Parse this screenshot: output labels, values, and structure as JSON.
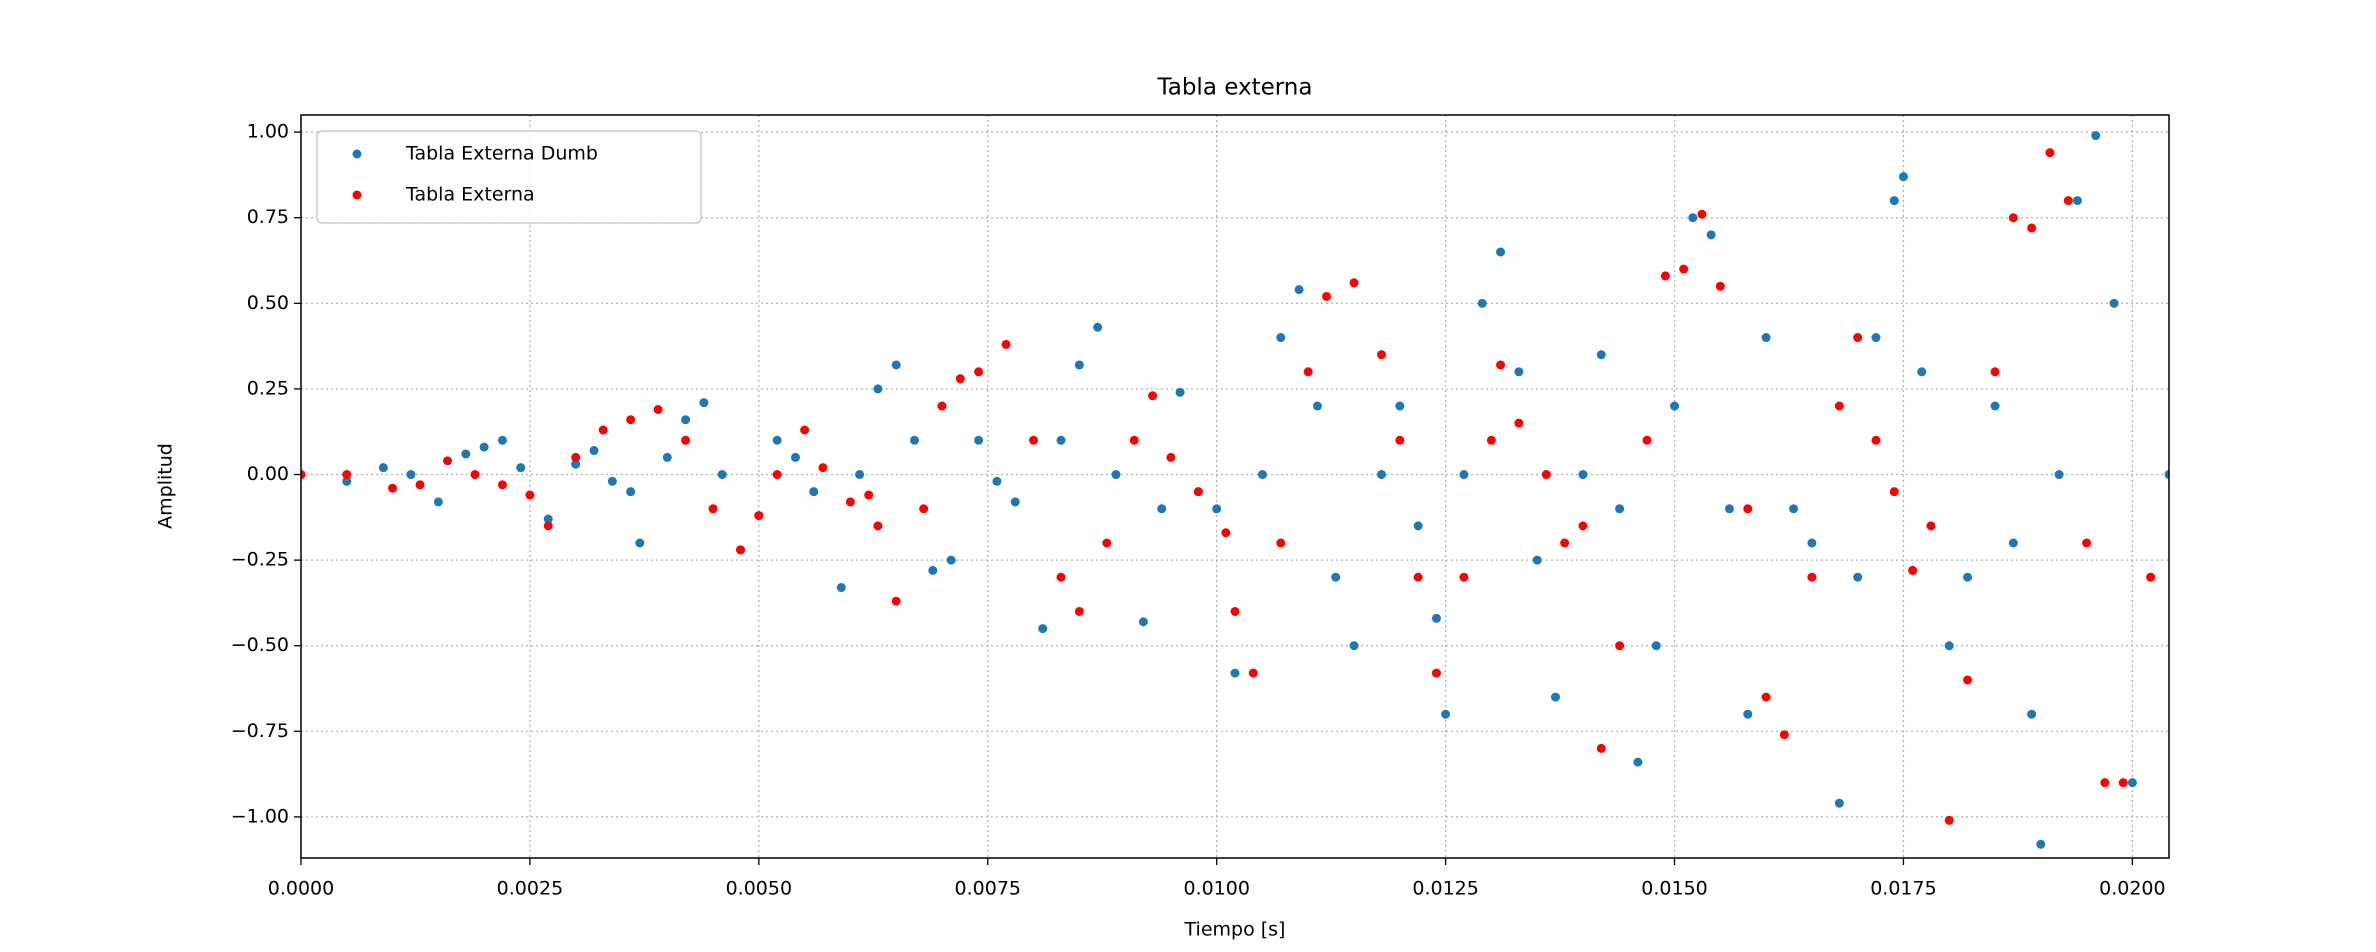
{
  "chart_data": {
    "type": "scatter",
    "title": "Tabla externa",
    "x_label": "Tiempo [s]",
    "y_label": "Amplitud",
    "xlim": [
      0,
      0.0204
    ],
    "ylim": [
      -1.12,
      1.05
    ],
    "xticks": [
      {
        "value": 0,
        "label": "0.0000"
      },
      {
        "value": 0.0025,
        "label": "0.0025"
      },
      {
        "value": 0.005,
        "label": "0.0050"
      },
      {
        "value": 0.0075,
        "label": "0.0075"
      },
      {
        "value": 0.01,
        "label": "0.0100"
      },
      {
        "value": 0.0125,
        "label": "0.0125"
      },
      {
        "value": 0.015,
        "label": "0.0150"
      },
      {
        "value": 0.0175,
        "label": "0.0175"
      },
      {
        "value": 0.02,
        "label": "0.0200"
      }
    ],
    "yticks": [
      {
        "value": -1,
        "label": "−1.00"
      },
      {
        "value": -0.75,
        "label": "−0.75"
      },
      {
        "value": -0.5,
        "label": "−0.50"
      },
      {
        "value": -0.25,
        "label": "−0.25"
      },
      {
        "value": 0,
        "label": "0.00"
      },
      {
        "value": 0.25,
        "label": "0.25"
      },
      {
        "value": 0.5,
        "label": "0.50"
      },
      {
        "value": 0.75,
        "label": "0.75"
      },
      {
        "value": 1,
        "label": "1.00"
      }
    ],
    "grid": true,
    "legend": "upper left",
    "series": [
      {
        "name": "Tabla Externa Dumb",
        "color": "#1f77b4",
        "x": [
          0,
          0.0005,
          0.0009,
          0.0012,
          0.0015,
          0.0018,
          0.002,
          0.0022,
          0.0024,
          0.0027,
          0.003,
          0.0032,
          0.0034,
          0.0036,
          0.0037,
          0.004,
          0.0042,
          0.0044,
          0.0046,
          0.0048,
          0.005,
          0.0052,
          0.0054,
          0.0056,
          0.0059,
          0.0061,
          0.0063,
          0.0065,
          0.0067,
          0.0069,
          0.0071,
          0.0074,
          0.0076,
          0.0078,
          0.0081,
          0.0083,
          0.0085,
          0.0087,
          0.0089,
          0.0092,
          0.0094,
          0.0096,
          0.0098,
          0.01,
          0.0102,
          0.0105,
          0.0107,
          0.0109,
          0.0111,
          0.0113,
          0.0115,
          0.0118,
          0.012,
          0.0122,
          0.0124,
          0.0125,
          0.0127,
          0.0129,
          0.0131,
          0.0133,
          0.0135,
          0.0137,
          0.014,
          0.0142,
          0.0144,
          0.0146,
          0.0148,
          0.015,
          0.0152,
          0.0154,
          0.0156,
          0.0158,
          0.016,
          0.0163,
          0.0165,
          0.0168,
          0.017,
          0.0172,
          0.0174,
          0.0175,
          0.0177,
          0.018,
          0.0182,
          0.0185,
          0.0187,
          0.0189,
          0.019,
          0.0192,
          0.0194,
          0.0196,
          0.0198,
          0.02,
          0.0202,
          0.0204
        ],
        "values": [
          0,
          -0.02,
          0.02,
          0,
          -0.08,
          0.06,
          0.08,
          0.1,
          0.02,
          -0.13,
          0.03,
          0.07,
          -0.02,
          -0.05,
          -0.2,
          0.05,
          0.16,
          0.21,
          0,
          -0.22,
          -0.12,
          0.1,
          0.05,
          -0.05,
          -0.33,
          0,
          0.25,
          0.32,
          0.1,
          -0.28,
          -0.25,
          0.1,
          -0.02,
          -0.08,
          -0.45,
          0.1,
          0.32,
          0.43,
          0,
          -0.43,
          -0.1,
          0.24,
          -0.05,
          -0.1,
          -0.58,
          0,
          0.4,
          0.54,
          0.2,
          -0.3,
          -0.5,
          0,
          0.2,
          -0.15,
          -0.42,
          -0.7,
          0,
          0.5,
          0.65,
          0.3,
          -0.25,
          -0.65,
          0,
          0.35,
          -0.1,
          -0.84,
          -0.5,
          0.2,
          0.75,
          0.7,
          -0.1,
          -0.7,
          0.4,
          -0.1,
          -0.2,
          -0.96,
          -0.3,
          0.4,
          0.8,
          0.87,
          0.3,
          -0.5,
          -0.3,
          0.2,
          -0.2,
          -0.7,
          -1.08,
          0,
          0.8,
          0.99,
          0.5,
          -0.9,
          -0.3,
          0
        ]
      },
      {
        "name": "Tabla Externa",
        "color": "#ff0000",
        "x": [
          0,
          0.0005,
          0.001,
          0.0013,
          0.0016,
          0.0019,
          0.0022,
          0.0025,
          0.0027,
          0.003,
          0.0033,
          0.0036,
          0.0039,
          0.0042,
          0.0045,
          0.0048,
          0.005,
          0.0052,
          0.0055,
          0.0057,
          0.006,
          0.0062,
          0.0063,
          0.0065,
          0.0068,
          0.007,
          0.0072,
          0.0074,
          0.0077,
          0.008,
          0.0083,
          0.0085,
          0.0088,
          0.0091,
          0.0093,
          0.0095,
          0.0098,
          0.0101,
          0.0102,
          0.0104,
          0.0107,
          0.011,
          0.0112,
          0.0115,
          0.0118,
          0.012,
          0.0122,
          0.0124,
          0.0127,
          0.013,
          0.0131,
          0.0133,
          0.0136,
          0.0138,
          0.014,
          0.0142,
          0.0144,
          0.0147,
          0.0149,
          0.0151,
          0.0153,
          0.0155,
          0.0158,
          0.016,
          0.0162,
          0.0165,
          0.0168,
          0.017,
          0.0172,
          0.0174,
          0.0176,
          0.0178,
          0.018,
          0.0182,
          0.0185,
          0.0187,
          0.0189,
          0.0191,
          0.0193,
          0.0195,
          0.0197,
          0.0199,
          0.0202
        ],
        "values": [
          0,
          0,
          -0.04,
          -0.03,
          0.04,
          0,
          -0.03,
          -0.06,
          -0.15,
          0.05,
          0.13,
          0.16,
          0.19,
          0.1,
          -0.1,
          -0.22,
          -0.12,
          0,
          0.13,
          0.02,
          -0.08,
          -0.06,
          -0.15,
          -0.37,
          -0.1,
          0.2,
          0.28,
          0.3,
          0.38,
          0.1,
          -0.3,
          -0.4,
          -0.2,
          0.1,
          0.23,
          0.05,
          -0.05,
          -0.17,
          -0.4,
          -0.58,
          -0.2,
          0.3,
          0.52,
          0.56,
          0.35,
          0.1,
          -0.3,
          -0.58,
          -0.3,
          0.1,
          0.32,
          0.15,
          0,
          -0.2,
          -0.15,
          -0.8,
          -0.5,
          0.1,
          0.58,
          0.6,
          0.76,
          0.55,
          -0.1,
          -0.65,
          -0.76,
          -0.3,
          0.2,
          0.4,
          0.1,
          -0.05,
          -0.28,
          -0.15,
          -1.01,
          -0.6,
          0.3,
          0.75,
          0.72,
          0.94,
          0.8,
          -0.2,
          -0.9,
          -0.9,
          -0.3
        ]
      }
    ]
  }
}
